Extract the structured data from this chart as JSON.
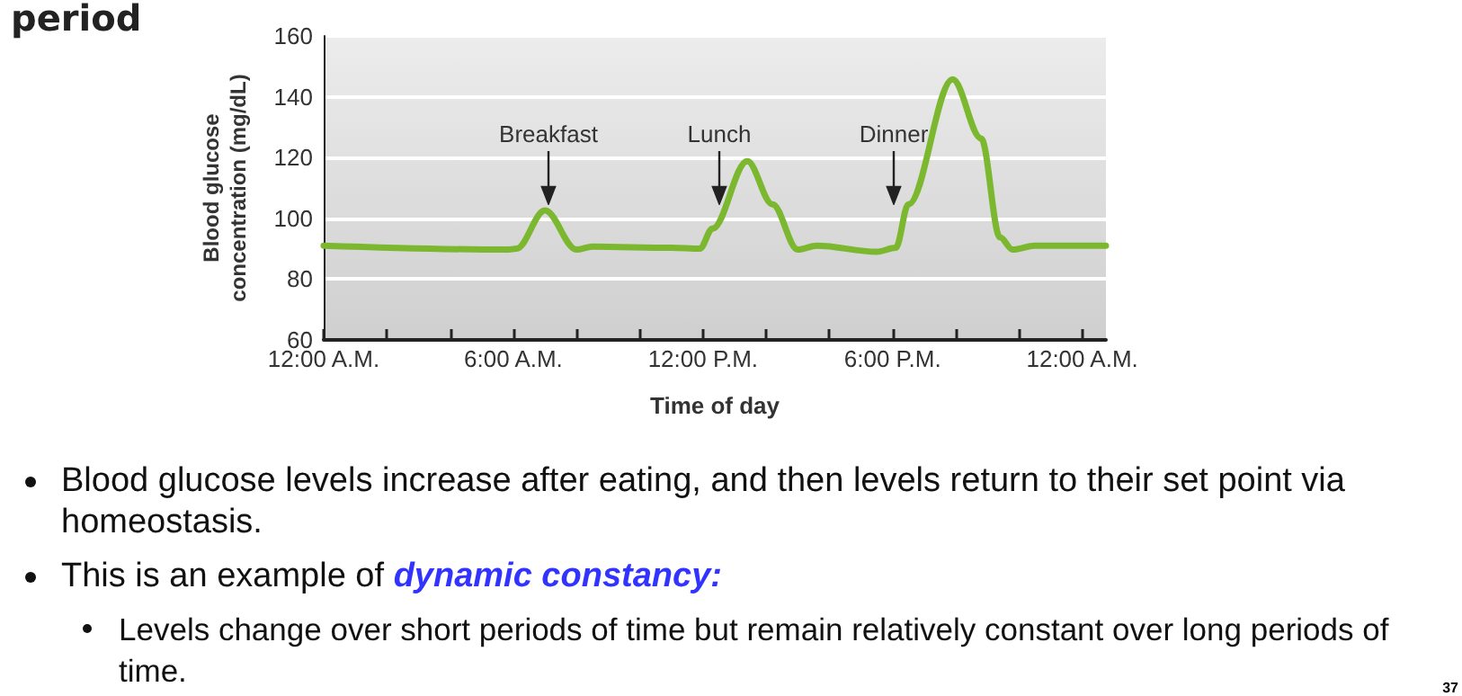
{
  "chart_data": {
    "type": "line",
    "title": "period",
    "xlabel": "Time of day",
    "ylabel": "Blood glucose concentration (mg/dL)",
    "series": [
      {
        "color": "#7cb82f",
        "x": [
          0,
          5.8,
          6.1,
          7.0,
          8.0,
          8.5,
          11.0,
          11.9,
          12.3,
          13.4,
          14.2,
          15.0,
          15.6,
          17.5,
          18.1,
          18.5,
          19.9,
          20.8,
          21.4,
          21.8,
          22.5,
          24.75
        ],
        "values": [
          91,
          89.7,
          90,
          102.6,
          89.7,
          90.7,
          90.3,
          90,
          96.6,
          118.8,
          104.6,
          89.7,
          91,
          89,
          90.3,
          104.6,
          145.7,
          126.3,
          93.7,
          89.7,
          91,
          91
        ]
      }
    ],
    "xlim": [
      0,
      24.75
    ],
    "xticks": [
      {
        "value": 0,
        "label": "12:00 A.M."
      },
      {
        "value": 2,
        "label": null
      },
      {
        "value": 4,
        "label": null
      },
      {
        "value": 6,
        "label": "6:00 A.M."
      },
      {
        "value": 8,
        "label": null
      },
      {
        "value": 10,
        "label": null
      },
      {
        "value": 12,
        "label": "12:00 P.M."
      },
      {
        "value": 14,
        "label": null
      },
      {
        "value": 16,
        "label": null
      },
      {
        "value": 18,
        "label": "6:00 P.M."
      },
      {
        "value": 20,
        "label": null
      },
      {
        "value": 22,
        "label": null
      },
      {
        "value": 24,
        "label": "12:00 A.M."
      }
    ],
    "ylim": [
      60,
      160
    ],
    "yticks": [
      60,
      80,
      100,
      120,
      140,
      160
    ],
    "grid": "y",
    "marker": "none",
    "line_style": "solid",
    "annotations": [
      "Breakfast",
      "Lunch",
      "Dinner",
      "Blood glucose levels increase after eating, and then levels return to their set point via homeostasis.",
      "This is an example of",
      "dynamic constancy:",
      "Levels change over short periods of time but remain relatively constant over long periods of time.",
      "37"
    ]
  }
}
